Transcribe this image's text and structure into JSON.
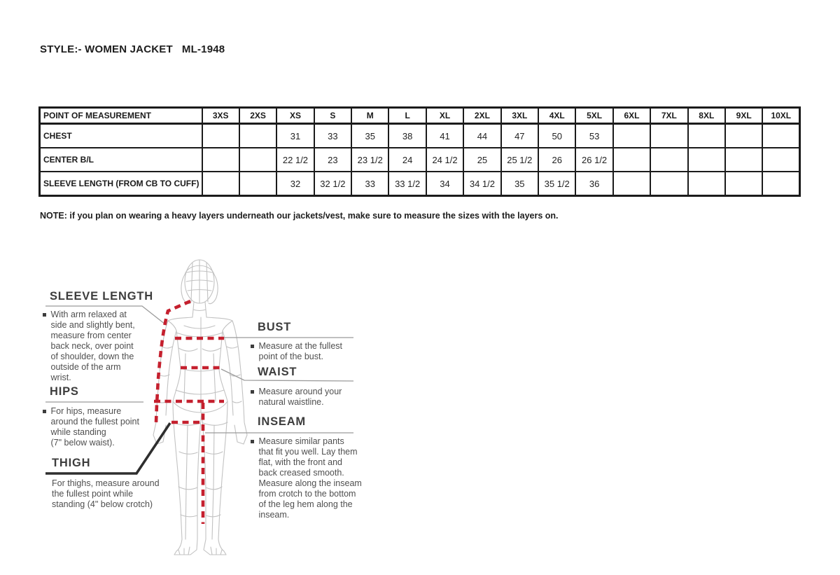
{
  "page": {
    "title": "STYLE:- WOMEN JACKET   ML-1948"
  },
  "size_chart": {
    "columns": [
      "POINT OF MEASUREMENT",
      "3XS",
      "2XS",
      "XS",
      "S",
      "M",
      "L",
      "XL",
      "2XL",
      "3XL",
      "4XL",
      "5XL",
      "6XL",
      "7XL",
      "8XL",
      "9XL",
      "10XL"
    ],
    "rows": [
      {
        "label": "CHEST",
        "values": [
          "",
          "",
          "31",
          "33",
          "35",
          "38",
          "41",
          "44",
          "47",
          "50",
          "53",
          "",
          "",
          "",
          "",
          ""
        ]
      },
      {
        "label": "CENTER B/L",
        "values": [
          "",
          "",
          "22 1/2",
          "23",
          "23 1/2",
          "24",
          "24 1/2",
          "25",
          "25 1/2",
          "26",
          "26 1/2",
          "",
          "",
          "",
          "",
          ""
        ]
      },
      {
        "label": "SLEEVE LENGTH (FROM CB TO CUFF)",
        "values": [
          "",
          "",
          "32",
          "32 1/2",
          "33",
          "33 1/2",
          "34",
          "34 1/2",
          "35",
          "35 1/2",
          "36",
          "",
          "",
          "",
          "",
          ""
        ]
      }
    ]
  },
  "note": "NOTE: if you plan on wearing a heavy layers underneath our jackets/vest, make sure to measure the sizes with the layers on.",
  "guide": {
    "sleeve_length": {
      "heading": "SLEEVE LENGTH",
      "text": "With arm relaxed at\nside and slightly bent,\nmeasure from center\nback neck, over point\nof shoulder, down the\noutside of the arm\nwrist."
    },
    "hips": {
      "heading": "HIPS",
      "text": "For hips, measure\naround the fullest point\nwhile standing\n(7\" below waist)."
    },
    "thigh": {
      "heading": "THIGH",
      "text": "For thighs, measure around\nthe fullest point while\nstanding (4\" below crotch)"
    },
    "bust": {
      "heading": "BUST",
      "text": "Measure at the fullest\npoint of the bust."
    },
    "waist": {
      "heading": "WAIST",
      "text": "Measure around your\nnatural waistline."
    },
    "inseam": {
      "heading": "INSEAM",
      "text": "Measure similar pants\nthat fit you well. Lay them\nflat, with the front and\nback creased smooth.\nMeasure along the inseam\nfrom crotch to the bottom\nof the leg hem along the\ninseam."
    }
  },
  "colors": {
    "dash_red": "#c5202e",
    "figure_gray": "#c2c2c2",
    "leader_gray": "#9b9b9b",
    "text_dark": "#3d3d3d",
    "table_border": "#1b1b1b"
  }
}
